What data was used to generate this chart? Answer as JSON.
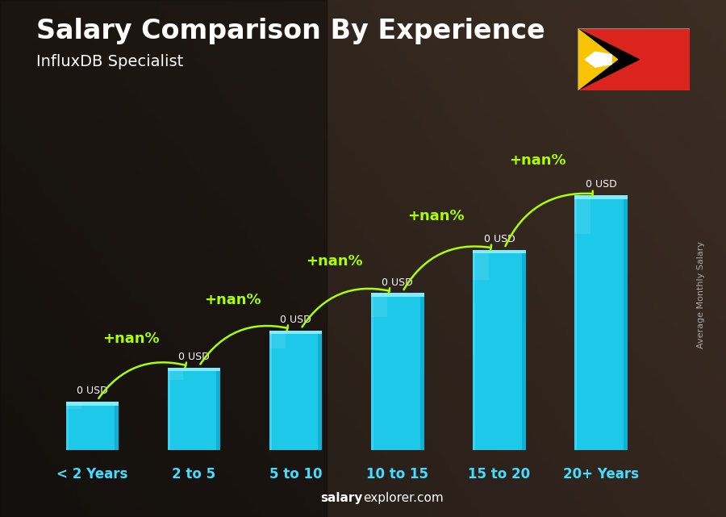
{
  "title": "Salary Comparison By Experience",
  "subtitle": "InfluxDB Specialist",
  "categories": [
    "< 2 Years",
    "2 to 5",
    "5 to 10",
    "10 to 15",
    "15 to 20",
    "20+ Years"
  ],
  "salary_labels": [
    "0 USD",
    "0 USD",
    "0 USD",
    "0 USD",
    "0 USD",
    "0 USD"
  ],
  "pct_labels": [
    "+nan%",
    "+nan%",
    "+nan%",
    "+nan%",
    "+nan%"
  ],
  "ylabel_text": "Average Monthly Salary",
  "footer_salary": "salary",
  "footer_rest": "explorer.com",
  "bar_color": "#1EC8E8",
  "bar_color_light": "#55DDFF",
  "bar_color_dark": "#0AAACE",
  "bar_color_top": "#88EEFF",
  "pct_label_color": "#AAFF00",
  "arrow_color": "#AAFF00",
  "salary_label_color": "#FFFFFF",
  "xlabel_color": "#44DDFF",
  "title_color": "#FFFFFF",
  "subtitle_color": "#FFFFFF",
  "ylabel_color": "#AAAAAA",
  "footer_color": "#FFFFFF",
  "bg_color": "#2B2520",
  "bar_heights": [
    0.155,
    0.265,
    0.385,
    0.505,
    0.645,
    0.82
  ],
  "bar_width": 0.52,
  "xlim": [
    -0.55,
    5.55
  ],
  "ylim": [
    0,
    1.0
  ],
  "title_fontsize": 24,
  "subtitle_fontsize": 14,
  "cat_fontsize": 12,
  "salary_fontsize": 9,
  "pct_fontsize": 13,
  "ylabel_fontsize": 8,
  "footer_fontsize": 11
}
